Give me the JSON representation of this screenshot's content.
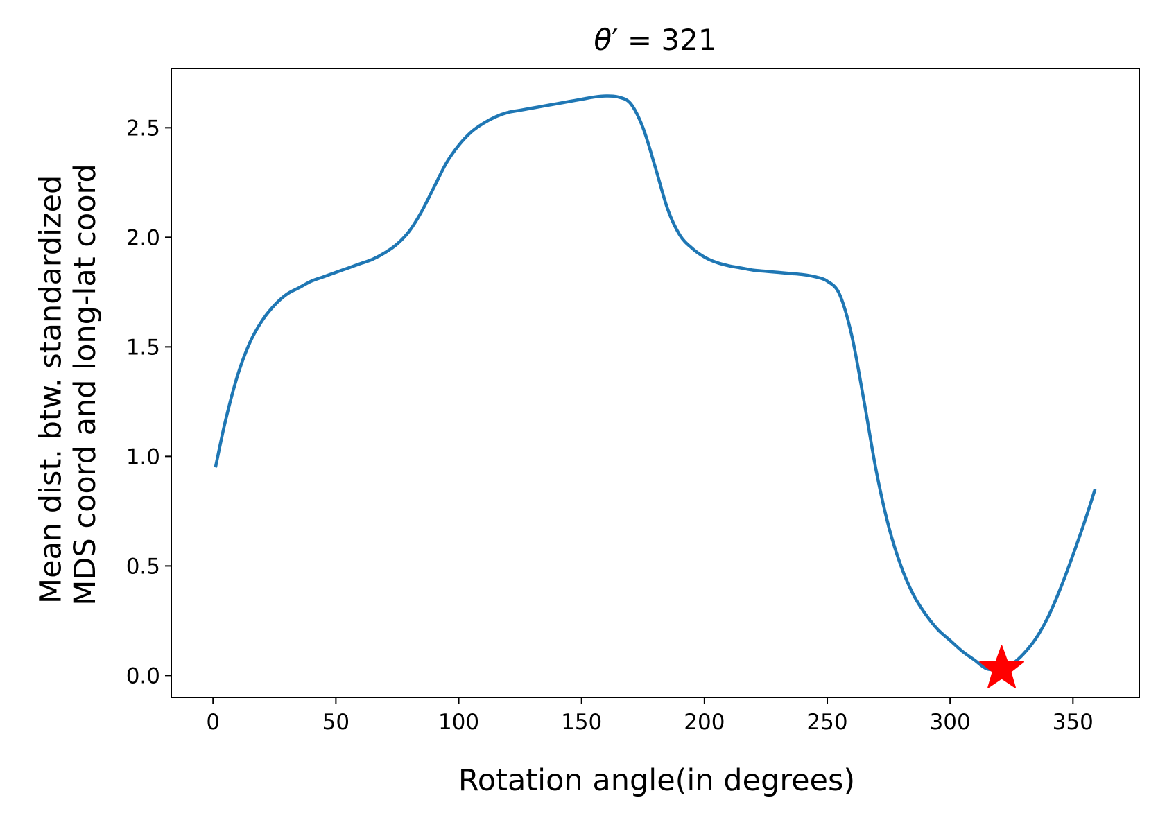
{
  "chart_data": {
    "type": "line",
    "title": {
      "prefix": "θ",
      "prime": "′",
      "equals": " = ",
      "value": "321"
    },
    "xlabel": "Rotation angle(in degrees)",
    "ylabel": [
      "Mean dist. btw. standardized",
      "MDS coord and long-lat coord"
    ],
    "xlim": [
      -17,
      377
    ],
    "ylim": [
      -0.1,
      2.77
    ],
    "xticks": [
      0,
      50,
      100,
      150,
      200,
      250,
      300,
      350
    ],
    "xtick_labels": [
      "0",
      "50",
      "100",
      "150",
      "200",
      "250",
      "300",
      "350"
    ],
    "yticks": [
      0.0,
      0.5,
      1.0,
      1.5,
      2.0,
      2.5
    ],
    "ytick_labels": [
      "0.0",
      "0.5",
      "1.0",
      "1.5",
      "2.0",
      "2.5"
    ],
    "grid": false,
    "series": [
      {
        "color": "#1f77b4",
        "x": [
          1,
          5,
          10,
          15,
          20,
          25,
          30,
          35,
          40,
          45,
          50,
          55,
          60,
          65,
          70,
          75,
          80,
          85,
          90,
          95,
          100,
          105,
          110,
          115,
          120,
          125,
          130,
          135,
          140,
          145,
          150,
          155,
          160,
          165,
          170,
          175,
          180,
          185,
          190,
          195,
          200,
          205,
          210,
          215,
          220,
          225,
          230,
          235,
          240,
          245,
          250,
          255,
          260,
          265,
          270,
          275,
          280,
          285,
          290,
          295,
          300,
          305,
          310,
          315,
          321,
          325,
          330,
          335,
          340,
          345,
          350,
          355,
          359
        ],
        "y": [
          0.95,
          1.16,
          1.37,
          1.52,
          1.62,
          1.69,
          1.74,
          1.77,
          1.8,
          1.82,
          1.84,
          1.86,
          1.88,
          1.9,
          1.93,
          1.97,
          2.03,
          2.12,
          2.23,
          2.34,
          2.42,
          2.48,
          2.52,
          2.55,
          2.57,
          2.58,
          2.59,
          2.6,
          2.61,
          2.62,
          2.63,
          2.64,
          2.645,
          2.64,
          2.61,
          2.5,
          2.32,
          2.13,
          2.01,
          1.95,
          1.91,
          1.885,
          1.87,
          1.86,
          1.85,
          1.845,
          1.84,
          1.835,
          1.83,
          1.82,
          1.8,
          1.74,
          1.55,
          1.25,
          0.93,
          0.68,
          0.5,
          0.37,
          0.28,
          0.21,
          0.16,
          0.11,
          0.07,
          0.03,
          0.03,
          0.05,
          0.1,
          0.17,
          0.27,
          0.4,
          0.55,
          0.71,
          0.85
        ]
      }
    ],
    "marker": {
      "x": 321,
      "y": 0.03,
      "shape": "star",
      "color": "#ff0000"
    }
  }
}
